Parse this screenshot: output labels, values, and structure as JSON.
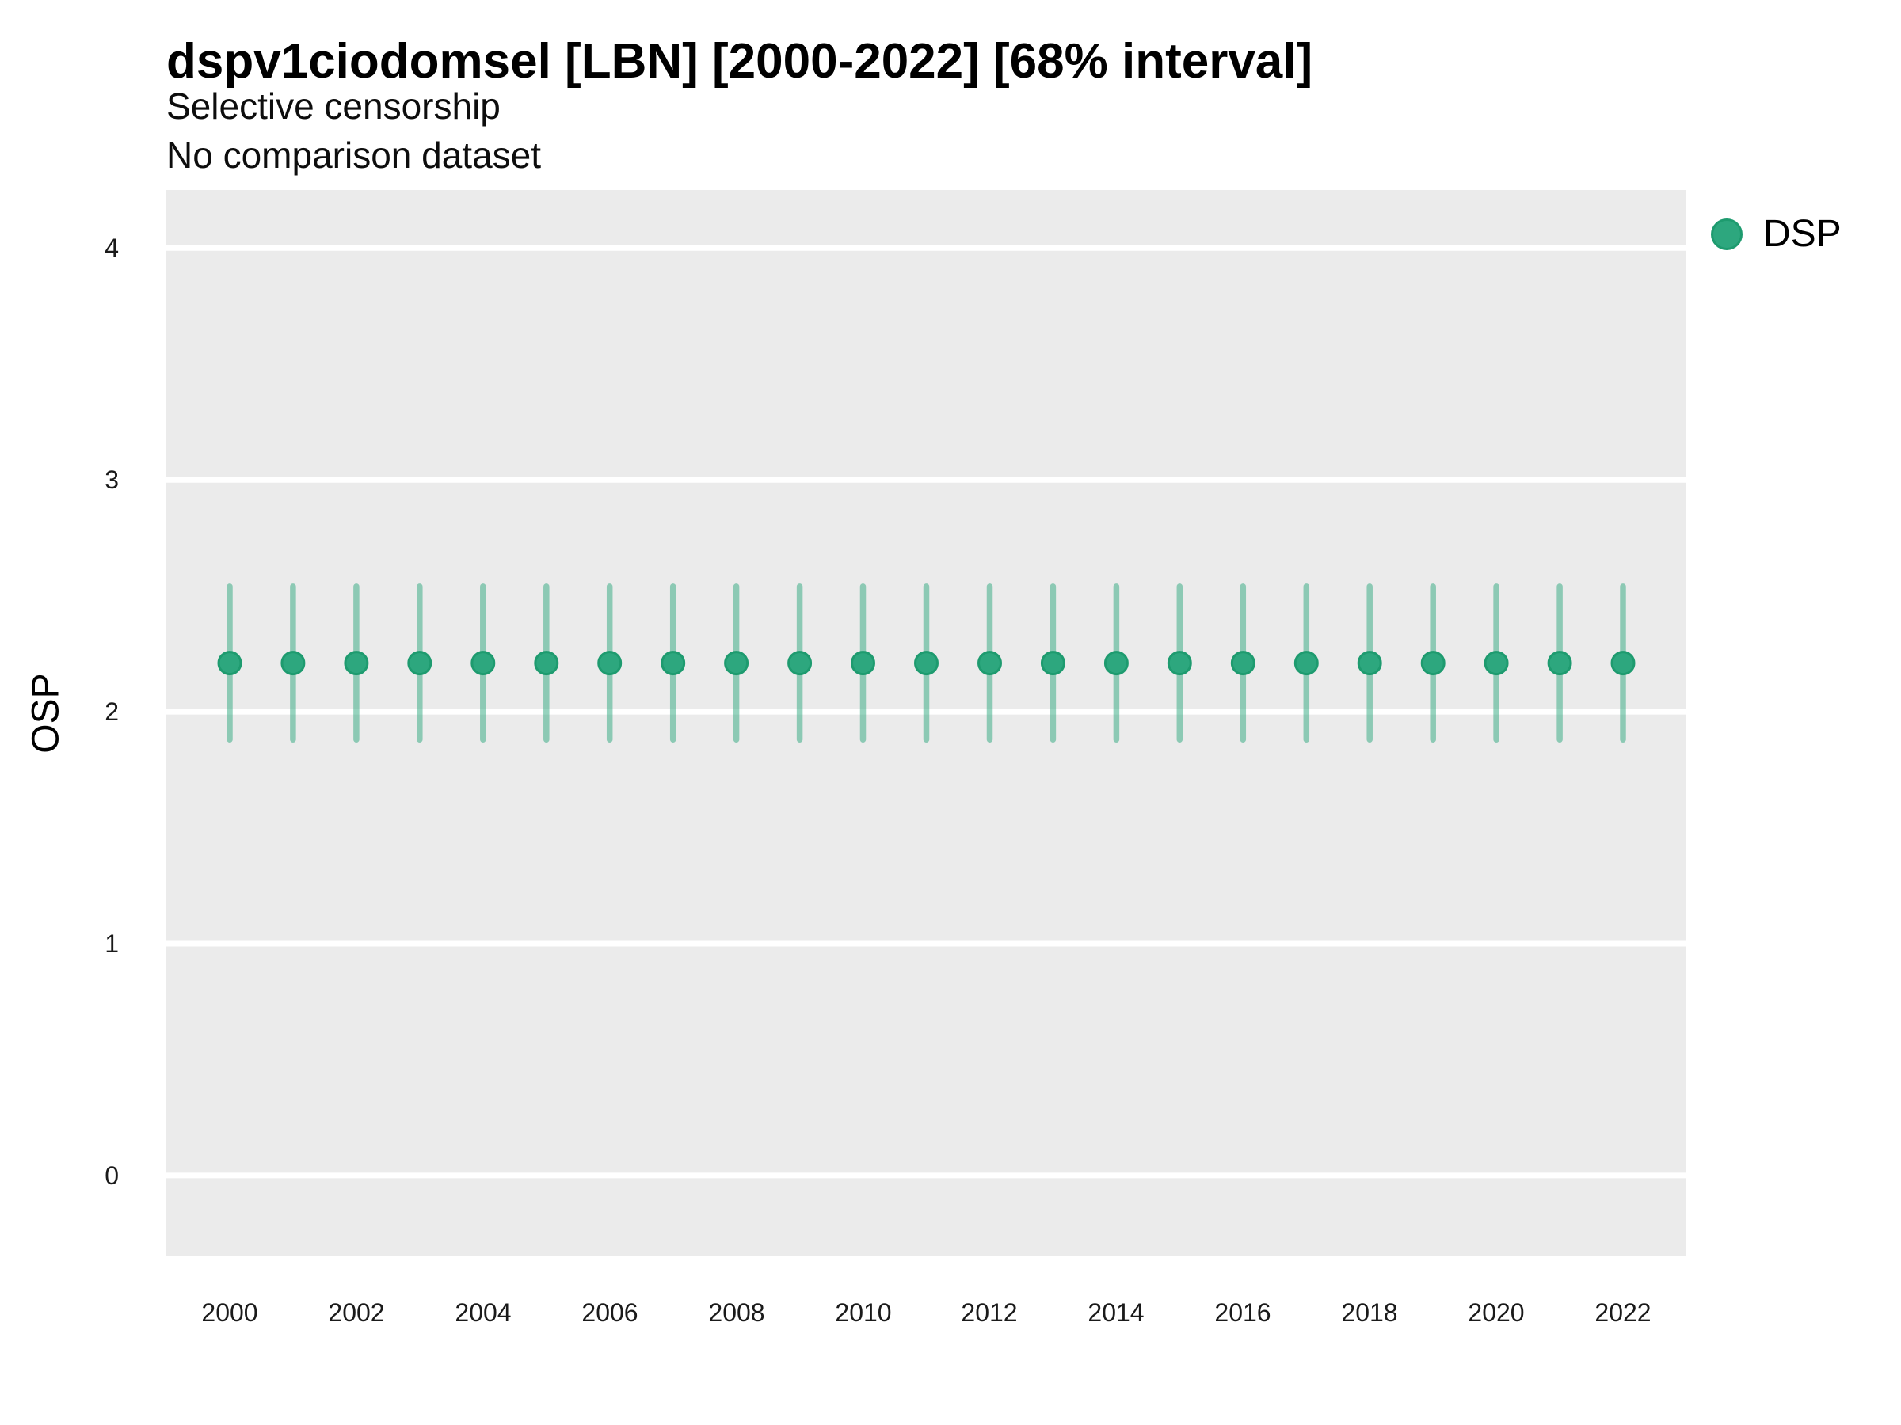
{
  "chart": {
    "title": "dspv1ciodomsel [LBN] [2000-2022] [68% interval]",
    "subtitle_line1": "Selective censorship",
    "subtitle_line2": "No comparison dataset",
    "ylabel": "OSP"
  },
  "legend": {
    "items": [
      {
        "label": "DSP",
        "color": "#2DA77E",
        "border": "#1E9B6F"
      }
    ]
  },
  "chart_data": {
    "type": "scatter",
    "subtype": "pointrange",
    "title": "dspv1ciodomsel [LBN] [2000-2022] [68% interval]",
    "subtitle": [
      "Selective censorship",
      "No comparison dataset"
    ],
    "xlabel": "",
    "ylabel": "OSP",
    "xlim": [
      1999,
      2023
    ],
    "ylim": [
      -0.345,
      4.25
    ],
    "xticks": [
      2000,
      2002,
      2004,
      2006,
      2008,
      2010,
      2012,
      2014,
      2016,
      2018,
      2020,
      2022
    ],
    "yticks": [
      0,
      1,
      2,
      3,
      4
    ],
    "grid": "horizontal-major-only",
    "panel_bg": "#EBEBEB",
    "gridline_color": "#FFFFFF",
    "legend_position": "right",
    "interval_level": "68%",
    "series": [
      {
        "name": "DSP",
        "color": "#2DA77E",
        "point_stroke": "#1E9B6F",
        "interval_color": "rgba(45,167,126,0.5)",
        "x": [
          2000,
          2001,
          2002,
          2003,
          2004,
          2005,
          2006,
          2007,
          2008,
          2009,
          2010,
          2011,
          2012,
          2013,
          2014,
          2015,
          2016,
          2017,
          2018,
          2019,
          2020,
          2021,
          2022
        ],
        "median": [
          2.21,
          2.21,
          2.21,
          2.21,
          2.21,
          2.21,
          2.21,
          2.21,
          2.21,
          2.21,
          2.21,
          2.21,
          2.21,
          2.21,
          2.21,
          2.21,
          2.21,
          2.21,
          2.21,
          2.21,
          2.21,
          2.21,
          2.21
        ],
        "lower": [
          1.88,
          1.88,
          1.88,
          1.88,
          1.88,
          1.88,
          1.88,
          1.88,
          1.88,
          1.88,
          1.88,
          1.88,
          1.88,
          1.88,
          1.88,
          1.88,
          1.88,
          1.88,
          1.88,
          1.88,
          1.88,
          1.88,
          1.88
        ],
        "upper": [
          2.54,
          2.54,
          2.54,
          2.54,
          2.54,
          2.54,
          2.54,
          2.54,
          2.54,
          2.54,
          2.54,
          2.54,
          2.54,
          2.54,
          2.54,
          2.54,
          2.54,
          2.54,
          2.54,
          2.54,
          2.54,
          2.54,
          2.54
        ]
      }
    ]
  }
}
